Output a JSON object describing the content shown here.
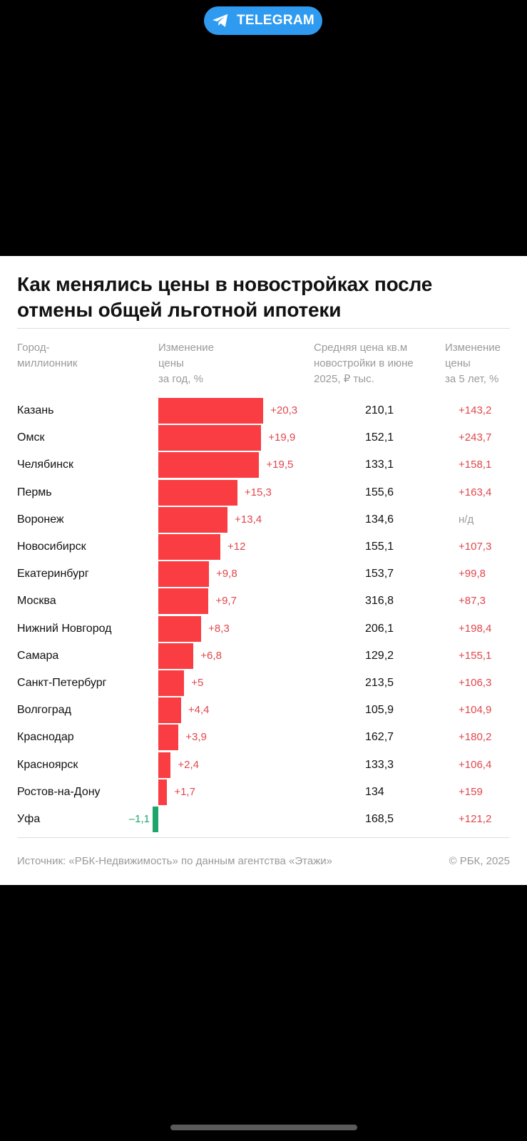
{
  "banner": {
    "label": "TELEGRAM",
    "icon": "telegram-icon"
  },
  "chart_data": {
    "type": "bar",
    "orientation": "horizontal",
    "title": "Как менялись цены в новостройках после отмены общей льготной ипотеки",
    "columns": {
      "city": "Город-\nмиллионник",
      "change_year": "Изменение\nцены\nза год, %",
      "avg_price": "Средняя цена кв.м\nновостройки в июне\n2025, ₽ тыс.",
      "change_5y": "Изменение\nцены\nза 5 лет, %"
    },
    "categories": [
      "Казань",
      "Омск",
      "Челябинск",
      "Пермь",
      "Воронеж",
      "Новосибирск",
      "Екатеринбург",
      "Москва",
      "Нижний Новгород",
      "Самара",
      "Санкт-Петербург",
      "Волгоград",
      "Краснодар",
      "Красноярск",
      "Ростов-на-Дону",
      "Уфа"
    ],
    "values": [
      20.3,
      19.9,
      19.5,
      15.3,
      13.4,
      12,
      9.8,
      9.7,
      8.3,
      6.8,
      5,
      4.4,
      3.9,
      2.4,
      1.7,
      -1.1
    ],
    "value_labels": [
      "+20,3",
      "+19,9",
      "+19,5",
      "+15,3",
      "+13,4",
      "+12",
      "+9,8",
      "+9,7",
      "+8,3",
      "+6,8",
      "+5",
      "+4,4",
      "+3,9",
      "+2,4",
      "+1,7",
      "–1,1"
    ],
    "avg_price": [
      "210,1",
      "152,1",
      "133,1",
      "155,6",
      "134,6",
      "155,1",
      "153,7",
      "316,8",
      "206,1",
      "129,2",
      "213,5",
      "105,9",
      "162,7",
      "133,3",
      "134",
      "168,5"
    ],
    "change_5y": [
      "+143,2",
      "+243,7",
      "+158,1",
      "+163,4",
      "н/д",
      "+107,3",
      "+99,8",
      "+87,3",
      "+198,4",
      "+155,1",
      "+106,3",
      "+104,9",
      "+180,2",
      "+106,4",
      "+159",
      "+121,2"
    ],
    "colors": {
      "positive": "#f93d43",
      "negative": "#1ea56a",
      "positive_text": "#e0464b",
      "muted": "#9a9a9a"
    },
    "source": "Источник: «РБК-Недвижимость» по данным агентства «Этажи»",
    "copyright": "© РБК, 2025"
  }
}
